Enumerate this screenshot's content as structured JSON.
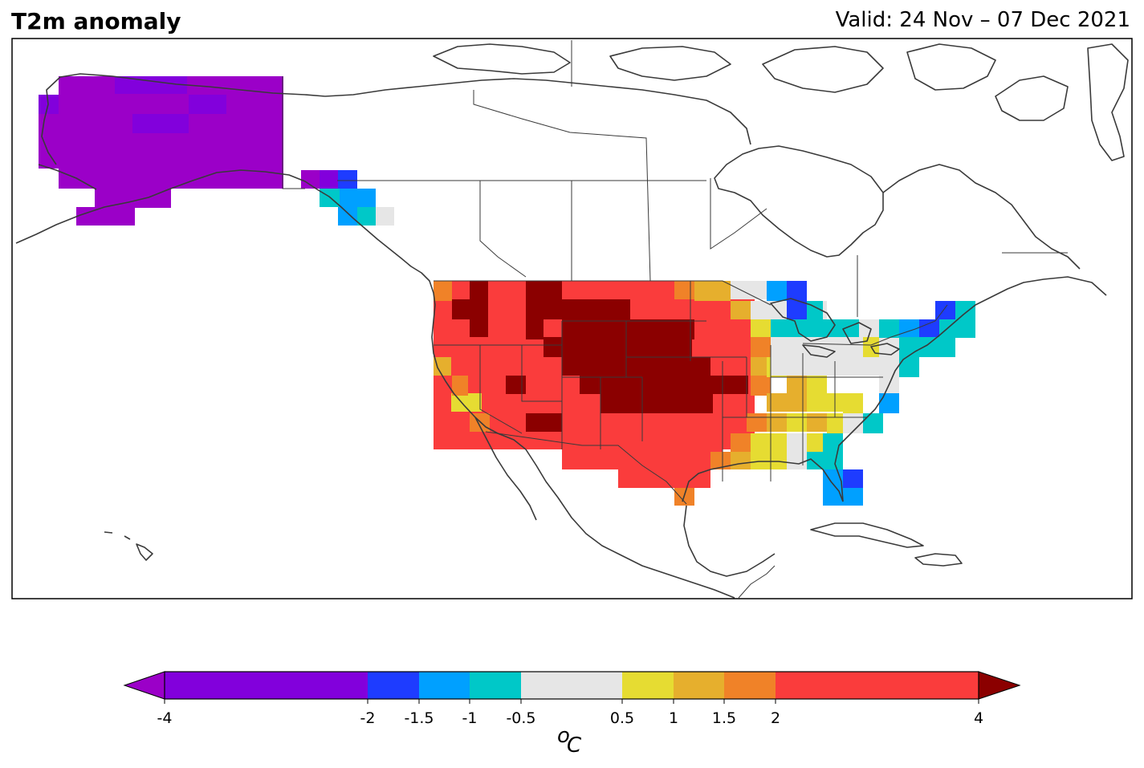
{
  "header": {
    "title": "T2m anomaly",
    "valid": "Valid: 24 Nov – 07 Dec 2021"
  },
  "colorbar": {
    "unit_sup": "o",
    "unit": "C",
    "ticks": [
      "-4",
      "-2",
      "-1.5",
      "-1",
      "-0.5",
      "0.5",
      "1",
      "1.5",
      "2",
      "4"
    ],
    "tick_values": [
      -4,
      -2,
      -1.5,
      -1,
      -0.5,
      0.5,
      1,
      1.5,
      2,
      4
    ],
    "under_color": "#9b00c8",
    "over_color": "#8b0000",
    "segments": [
      {
        "from": -4,
        "to": -2,
        "color": "#8200dc"
      },
      {
        "from": -2,
        "to": -1.5,
        "color": "#1e3cff"
      },
      {
        "from": -1.5,
        "to": -1,
        "color": "#00a0ff"
      },
      {
        "from": -1,
        "to": -0.5,
        "color": "#00c8c8"
      },
      {
        "from": -0.5,
        "to": 0.5,
        "color": "#e6e6e6"
      },
      {
        "from": 0.5,
        "to": 1,
        "color": "#e6dc32"
      },
      {
        "from": 1,
        "to": 1.5,
        "color": "#e6af2d"
      },
      {
        "from": 1.5,
        "to": 2,
        "color": "#f08228"
      },
      {
        "from": 2,
        "to": 4,
        "color": "#fa3c3c"
      }
    ]
  },
  "map": {
    "region": "North America",
    "coastline_color": "#3a3a3a",
    "legend_classes": [
      "<-4",
      "-4..-2",
      "-2..-1.5",
      "-1.5..-1",
      "-1..-0.5",
      "-0.5..0.5",
      "0.5..1",
      "1..1.5",
      "1.5..2",
      "2..4",
      ">4"
    ]
  }
}
